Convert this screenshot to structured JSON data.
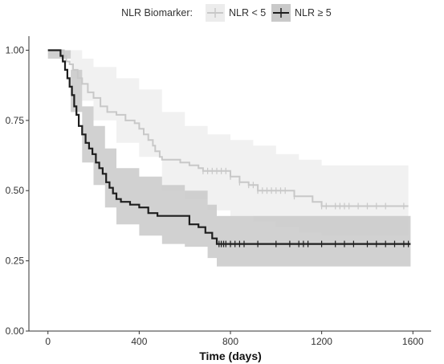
{
  "chart_data": {
    "type": "line",
    "subtype": "kaplan-meier",
    "title": "",
    "xlabel": "Time (days)",
    "ylabel": "",
    "xlim": [
      -80,
      1680
    ],
    "ylim": [
      0,
      1.05
    ],
    "x_ticks": [
      0,
      400,
      800,
      1200,
      1600
    ],
    "y_ticks": [
      0.0,
      0.25,
      0.5,
      0.75,
      1.0
    ],
    "x_tick_labels": [
      "0",
      "400",
      "800",
      "1200",
      "1600"
    ],
    "y_tick_labels": [
      "0.00",
      "0.25",
      "0.50",
      "0.75",
      "1.00"
    ],
    "grid": false,
    "legend": {
      "title": "NLR Biomarker:",
      "position": "top",
      "entries": [
        "NLR < 5",
        "NLR ≥ 5"
      ]
    },
    "series": [
      {
        "name": "NLR < 5",
        "color": "#c8c8c8",
        "band_color": "#ececec",
        "steps": [
          [
            0,
            1.0
          ],
          [
            60,
            1.0
          ],
          [
            70,
            0.98
          ],
          [
            80,
            0.96
          ],
          [
            95,
            0.95
          ],
          [
            110,
            0.93
          ],
          [
            130,
            0.9
          ],
          [
            150,
            0.88
          ],
          [
            175,
            0.85
          ],
          [
            200,
            0.83
          ],
          [
            230,
            0.8
          ],
          [
            260,
            0.78
          ],
          [
            300,
            0.77
          ],
          [
            340,
            0.75
          ],
          [
            380,
            0.74
          ],
          [
            400,
            0.72
          ],
          [
            420,
            0.7
          ],
          [
            440,
            0.68
          ],
          [
            460,
            0.66
          ],
          [
            470,
            0.64
          ],
          [
            490,
            0.62
          ],
          [
            500,
            0.61
          ],
          [
            580,
            0.6
          ],
          [
            620,
            0.59
          ],
          [
            660,
            0.58
          ],
          [
            680,
            0.57
          ],
          [
            800,
            0.55
          ],
          [
            840,
            0.53
          ],
          [
            880,
            0.52
          ],
          [
            920,
            0.5
          ],
          [
            1080,
            0.48
          ],
          [
            1160,
            0.46
          ],
          [
            1200,
            0.445
          ],
          [
            1580,
            0.445
          ]
        ],
        "ci_lower": [
          [
            0,
            0.98
          ],
          [
            60,
            0.98
          ],
          [
            100,
            0.9
          ],
          [
            150,
            0.82
          ],
          [
            200,
            0.75
          ],
          [
            300,
            0.67
          ],
          [
            400,
            0.62
          ],
          [
            500,
            0.5
          ],
          [
            600,
            0.47
          ],
          [
            700,
            0.43
          ],
          [
            800,
            0.41
          ],
          [
            900,
            0.39
          ],
          [
            1000,
            0.37
          ],
          [
            1100,
            0.35
          ],
          [
            1200,
            0.34
          ],
          [
            1580,
            0.34
          ]
        ],
        "ci_upper": [
          [
            0,
            1.0
          ],
          [
            60,
            1.0
          ],
          [
            100,
            1.0
          ],
          [
            150,
            0.97
          ],
          [
            200,
            0.94
          ],
          [
            300,
            0.9
          ],
          [
            400,
            0.86
          ],
          [
            500,
            0.78
          ],
          [
            600,
            0.73
          ],
          [
            700,
            0.7
          ],
          [
            800,
            0.68
          ],
          [
            900,
            0.66
          ],
          [
            1000,
            0.63
          ],
          [
            1100,
            0.61
          ],
          [
            1200,
            0.59
          ],
          [
            1580,
            0.59
          ]
        ],
        "censor_x": [
          680,
          700,
          720,
          740,
          760,
          780,
          800,
          840,
          880,
          900,
          920,
          940,
          960,
          980,
          1000,
          1020,
          1040,
          1080,
          1200,
          1220,
          1260,
          1280,
          1300,
          1320,
          1360,
          1400,
          1440,
          1480,
          1560
        ]
      },
      {
        "name": "NLR ≥ 5",
        "color": "#1e1e1e",
        "band_color": "#c9c9c9",
        "steps": [
          [
            0,
            1.0
          ],
          [
            45,
            1.0
          ],
          [
            55,
            0.98
          ],
          [
            65,
            0.96
          ],
          [
            75,
            0.93
          ],
          [
            85,
            0.9
          ],
          [
            95,
            0.87
          ],
          [
            105,
            0.84
          ],
          [
            115,
            0.8
          ],
          [
            125,
            0.77
          ],
          [
            135,
            0.73
          ],
          [
            150,
            0.7
          ],
          [
            165,
            0.67
          ],
          [
            180,
            0.65
          ],
          [
            195,
            0.63
          ],
          [
            210,
            0.6
          ],
          [
            225,
            0.58
          ],
          [
            240,
            0.56
          ],
          [
            255,
            0.53
          ],
          [
            270,
            0.51
          ],
          [
            285,
            0.49
          ],
          [
            300,
            0.47
          ],
          [
            320,
            0.46
          ],
          [
            360,
            0.45
          ],
          [
            400,
            0.44
          ],
          [
            440,
            0.42
          ],
          [
            480,
            0.41
          ],
          [
            600,
            0.41
          ],
          [
            620,
            0.38
          ],
          [
            660,
            0.37
          ],
          [
            690,
            0.35
          ],
          [
            720,
            0.33
          ],
          [
            740,
            0.31
          ],
          [
            1590,
            0.31
          ]
        ],
        "ci_lower": [
          [
            0,
            0.97
          ],
          [
            50,
            0.97
          ],
          [
            100,
            0.78
          ],
          [
            150,
            0.6
          ],
          [
            200,
            0.52
          ],
          [
            250,
            0.44
          ],
          [
            300,
            0.38
          ],
          [
            400,
            0.34
          ],
          [
            500,
            0.31
          ],
          [
            600,
            0.3
          ],
          [
            700,
            0.26
          ],
          [
            740,
            0.23
          ],
          [
            1590,
            0.23
          ]
        ],
        "ci_upper": [
          [
            0,
            1.0
          ],
          [
            50,
            1.0
          ],
          [
            100,
            0.93
          ],
          [
            150,
            0.8
          ],
          [
            200,
            0.73
          ],
          [
            250,
            0.65
          ],
          [
            300,
            0.58
          ],
          [
            400,
            0.55
          ],
          [
            500,
            0.52
          ],
          [
            600,
            0.5
          ],
          [
            700,
            0.45
          ],
          [
            740,
            0.41
          ],
          [
            1590,
            0.41
          ]
        ],
        "censor_x": [
          750,
          760,
          770,
          780,
          800,
          820,
          840,
          860,
          920,
          1000,
          1060,
          1100,
          1120,
          1140,
          1200,
          1260,
          1300,
          1340,
          1400,
          1440,
          1480,
          1520,
          1560,
          1580
        ]
      }
    ]
  }
}
